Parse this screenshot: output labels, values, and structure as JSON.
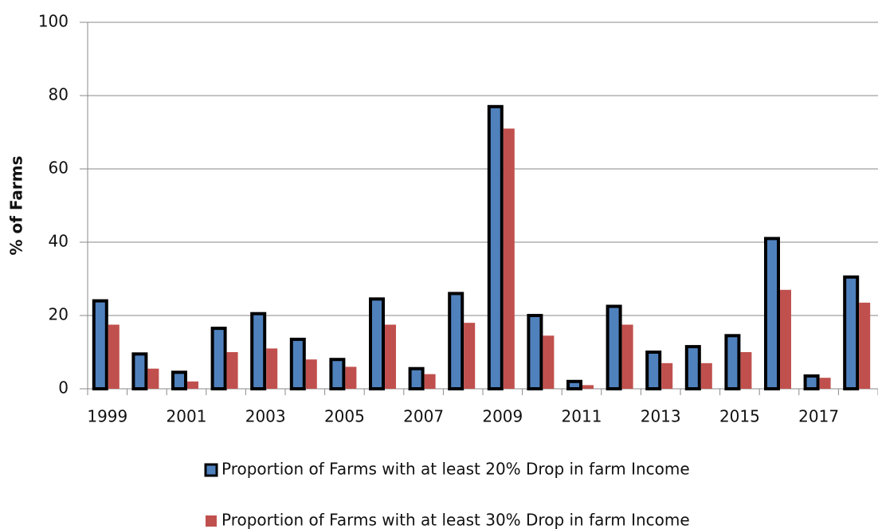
{
  "chart_data": {
    "type": "bar",
    "y_label": "% of Farms",
    "categories": [
      "1999",
      null,
      "2001",
      null,
      "2003",
      null,
      "2005",
      null,
      "2007",
      null,
      "2009",
      null,
      "2011",
      null,
      "2013",
      null,
      "2015",
      null,
      "2017",
      null
    ],
    "series": [
      {
        "name": "Proportion of Farms with at least 20% Drop in farm Income",
        "color": "#4f81bd",
        "values": [
          24,
          9.5,
          4.5,
          16.5,
          20.5,
          13.5,
          8,
          24.5,
          5.5,
          26,
          77,
          20,
          2,
          22.5,
          10,
          11.5,
          14.5,
          41,
          3.5,
          30.5
        ]
      },
      {
        "name": "Proportion of Farms with at least 30% Drop in farm Income",
        "color": "#c0504d",
        "values": [
          17.5,
          5.5,
          2,
          10,
          11,
          8,
          6,
          17.5,
          4,
          18,
          71,
          14.5,
          1,
          17.5,
          7,
          7,
          10,
          27,
          3,
          23.5
        ]
      }
    ],
    "ylim": [
      0,
      100
    ],
    "yticks": [
      0,
      20,
      40,
      60,
      80,
      100
    ],
    "grid": true,
    "legend": "bottom"
  }
}
